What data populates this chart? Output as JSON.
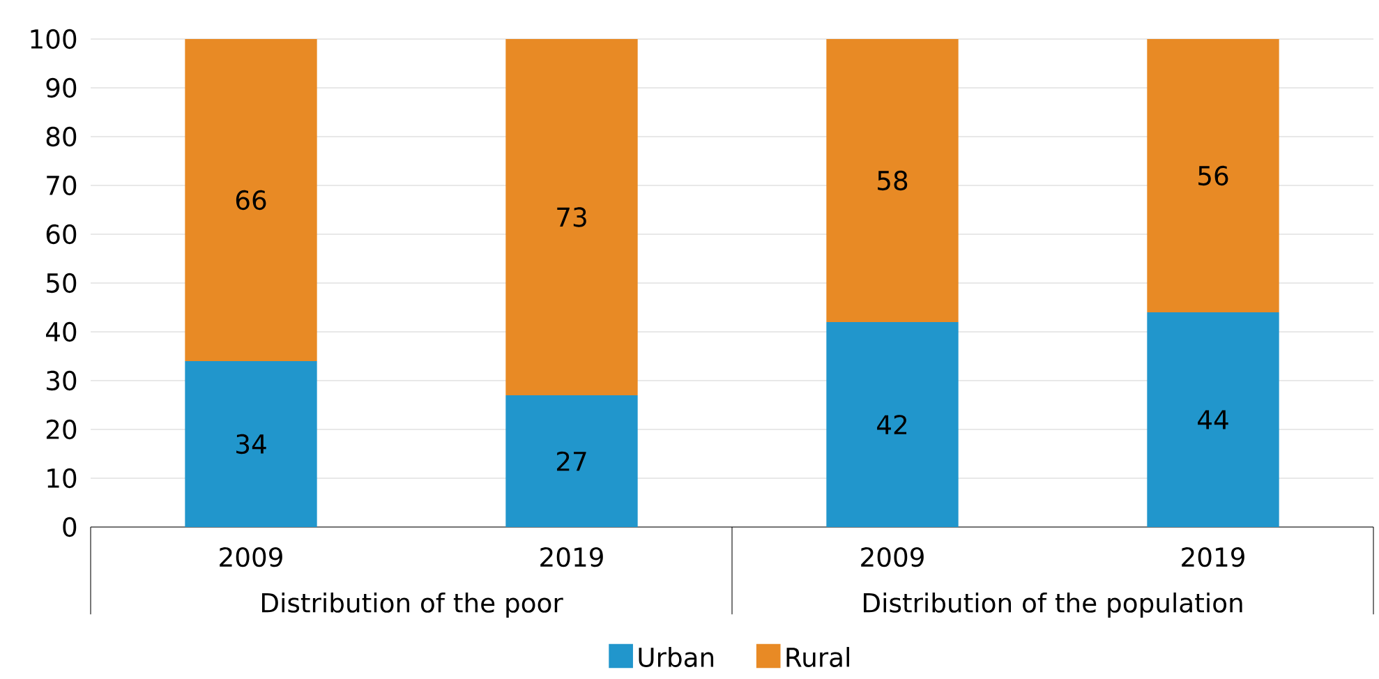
{
  "chart_data": {
    "type": "bar",
    "stacked": true,
    "categories": [
      "2009",
      "2019",
      "2009",
      "2019"
    ],
    "series": [
      {
        "name": "Urban",
        "color": "#2196cc",
        "values": [
          34,
          27,
          42,
          44
        ]
      },
      {
        "name": "Rural",
        "color": "#e88a25",
        "values": [
          66,
          73,
          58,
          56
        ]
      }
    ],
    "ylim": [
      0,
      100
    ],
    "yticks": [
      0,
      10,
      20,
      30,
      40,
      50,
      60,
      70,
      80,
      90,
      100
    ],
    "grid": "y",
    "legend": "bottom",
    "data_labels": true,
    "annotations": [
      "Distribution of the poor",
      "Distribution of the population"
    ]
  }
}
